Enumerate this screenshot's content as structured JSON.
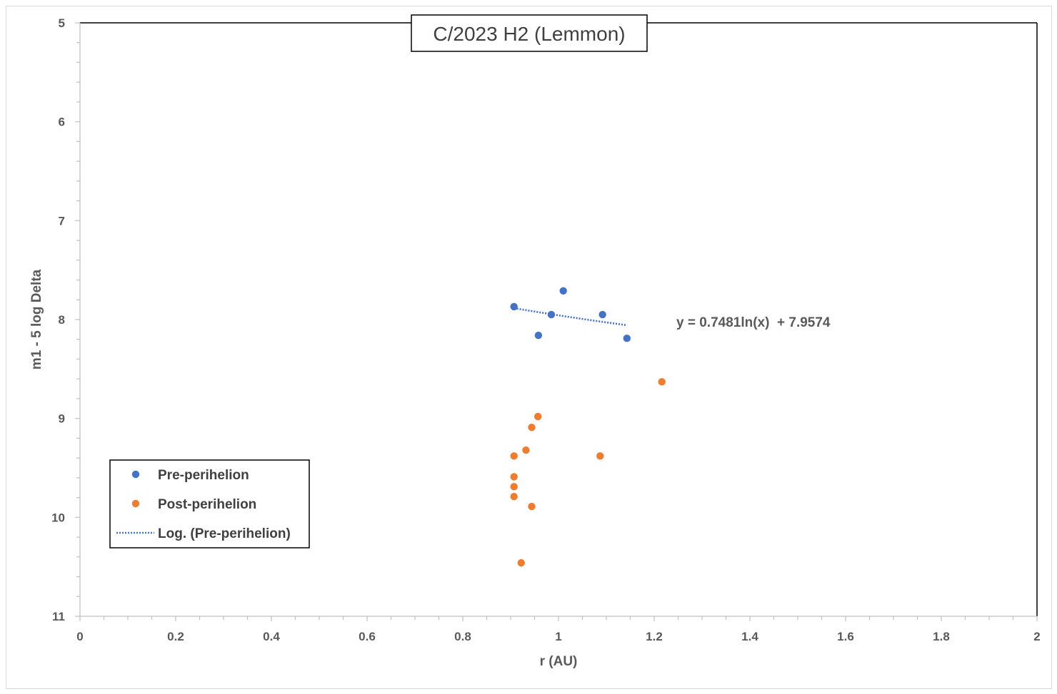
{
  "chart_data": {
    "type": "scatter",
    "title": "C/2023 H2 (Lemmon)",
    "xlabel": "r (AU)",
    "ylabel": "m1 - 5 log Delta",
    "xlim": [
      0,
      2
    ],
    "ylim": [
      5,
      11
    ],
    "y_inverted": true,
    "x_ticks": [
      "0",
      "0.2",
      "0.4",
      "0.6",
      "0.8",
      "1",
      "1.2",
      "1.4",
      "1.6",
      "1.8",
      "2"
    ],
    "y_ticks": [
      "5",
      "6",
      "7",
      "8",
      "9",
      "10",
      "11"
    ],
    "grid": false,
    "legend_position": "bottom-left",
    "series": [
      {
        "name": "Pre-perihelion",
        "color": "#4472c4",
        "points": [
          {
            "x": 0.907,
            "y": 7.87
          },
          {
            "x": 0.958,
            "y": 8.16
          },
          {
            "x": 0.985,
            "y": 7.95
          },
          {
            "x": 1.01,
            "y": 7.71
          },
          {
            "x": 1.092,
            "y": 7.95
          },
          {
            "x": 1.143,
            "y": 8.19
          }
        ]
      },
      {
        "name": "Post-perihelion",
        "color": "#ed7d31",
        "points": [
          {
            "x": 0.907,
            "y": 9.38
          },
          {
            "x": 0.907,
            "y": 9.59
          },
          {
            "x": 0.907,
            "y": 9.69
          },
          {
            "x": 0.907,
            "y": 9.79
          },
          {
            "x": 0.922,
            "y": 10.46
          },
          {
            "x": 0.932,
            "y": 9.32
          },
          {
            "x": 0.944,
            "y": 9.09
          },
          {
            "x": 0.944,
            "y": 9.89
          },
          {
            "x": 0.957,
            "y": 8.98
          },
          {
            "x": 1.087,
            "y": 9.38
          },
          {
            "x": 1.216,
            "y": 8.63
          }
        ]
      }
    ],
    "trendline": {
      "name": "Log. (Pre-perihelion)",
      "series": "Pre-perihelion",
      "type": "logarithmic",
      "a": 0.7481,
      "b": 7.9574,
      "x_range": [
        0.907,
        1.143
      ],
      "color": "#4472c4",
      "equation_label": "y = 0.7481ln(x)  + 7.9574"
    }
  }
}
